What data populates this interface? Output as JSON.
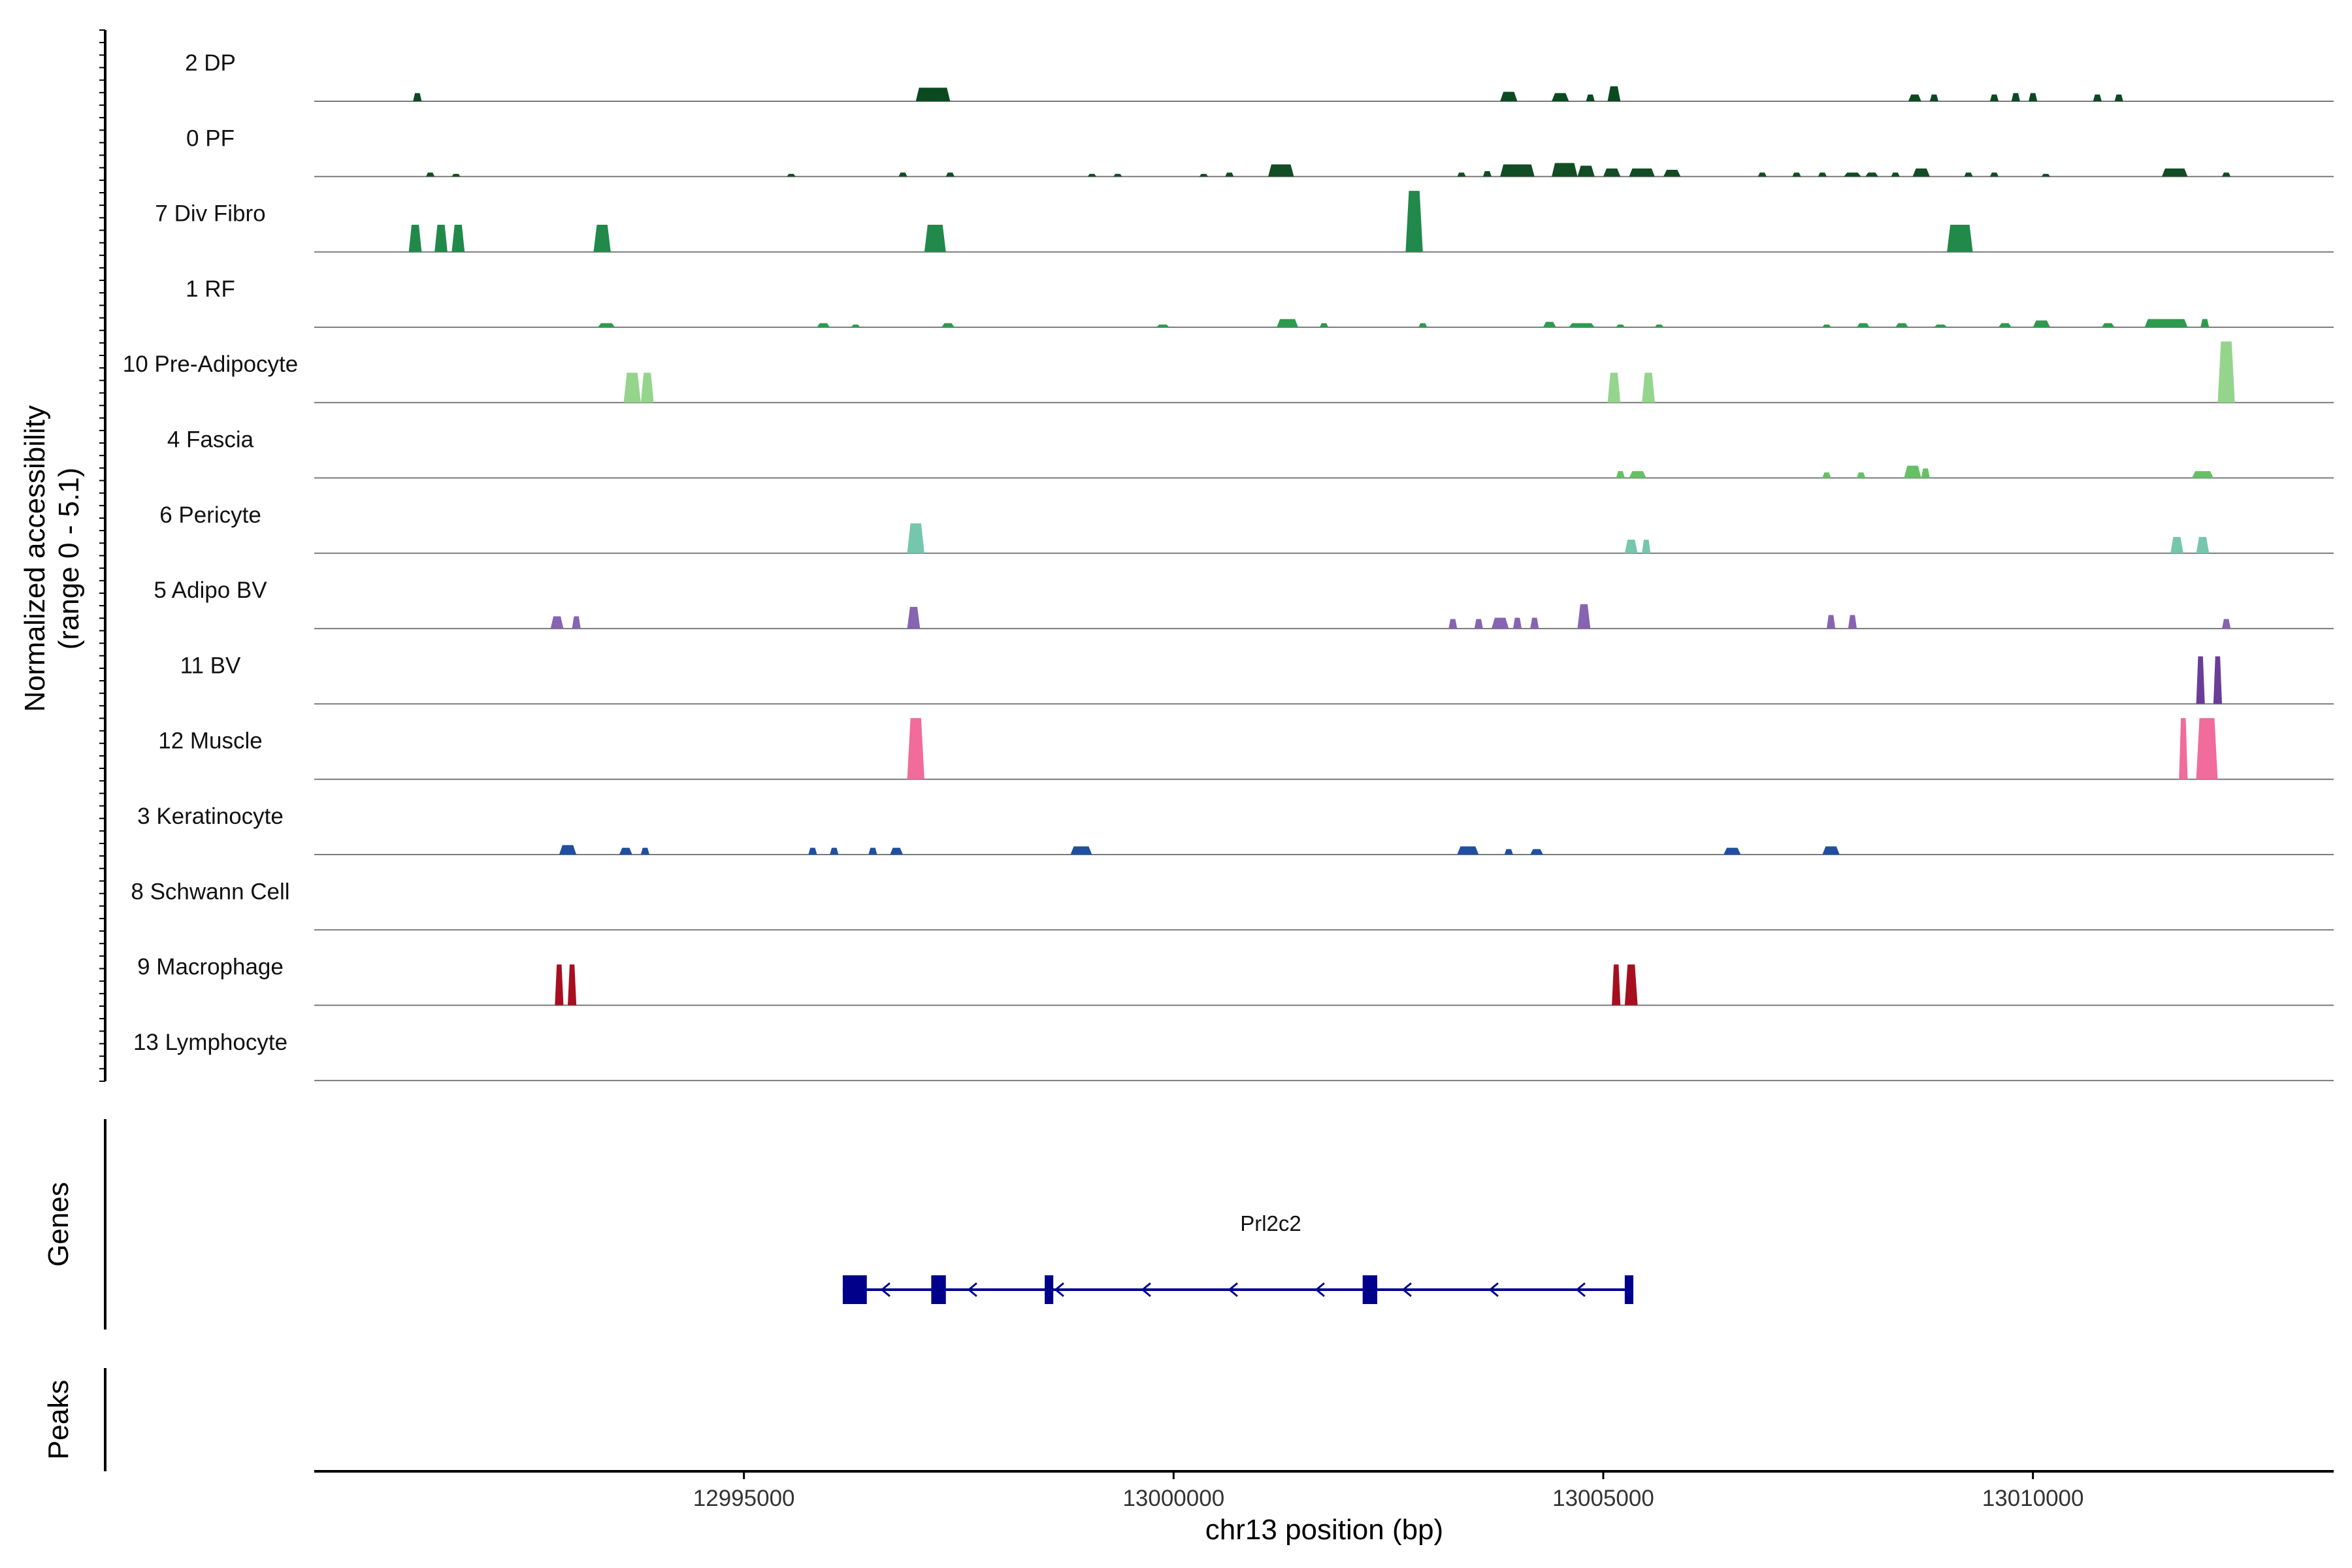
{
  "chart_data": {
    "type": "area",
    "chromosome": "chr13",
    "xlim": [
      12990000,
      13013500
    ],
    "xlabel": "chr13 position (bp)",
    "x_ticks": [
      12995000,
      13000000,
      13005000,
      13010000
    ],
    "x_tick_labels": [
      "12995000",
      "13000000",
      "13005000",
      "13010000"
    ],
    "ylabel_line1": "Normalized accessibility",
    "ylabel_line2": "(range 0 - 5.1)",
    "ylim": [
      0,
      5.1
    ],
    "grid": false,
    "series": [
      {
        "name": "2 DP",
        "color": "#0b4a21",
        "peaks": [
          [
            12991150,
            12991250,
            0.6
          ],
          [
            12997000,
            12997400,
            1.0
          ],
          [
            13003800,
            13004000,
            0.7
          ],
          [
            13004400,
            13004600,
            0.6
          ],
          [
            13004800,
            13004900,
            0.5
          ],
          [
            13005050,
            13005200,
            1.1
          ],
          [
            13008550,
            13008700,
            0.5
          ],
          [
            13008800,
            13008900,
            0.5
          ],
          [
            13009500,
            13009600,
            0.5
          ],
          [
            13009750,
            13009850,
            0.6
          ],
          [
            13009950,
            13010050,
            0.6
          ],
          [
            13010700,
            13010800,
            0.5
          ],
          [
            13010950,
            13011050,
            0.5
          ]
        ]
      },
      {
        "name": "0 PF",
        "color": "#134d25",
        "peaks": [
          [
            12991300,
            12991400,
            0.3
          ],
          [
            12991600,
            12991700,
            0.2
          ],
          [
            12995500,
            12995600,
            0.2
          ],
          [
            12996800,
            12996900,
            0.3
          ],
          [
            12997350,
            12997450,
            0.3
          ],
          [
            12999000,
            12999100,
            0.2
          ],
          [
            12999300,
            12999400,
            0.2
          ],
          [
            13000300,
            13000400,
            0.2
          ],
          [
            13000600,
            13000700,
            0.3
          ],
          [
            13001100,
            13001400,
            0.9
          ],
          [
            13003300,
            13003400,
            0.3
          ],
          [
            13003600,
            13003700,
            0.4
          ],
          [
            13003800,
            13004200,
            0.9
          ],
          [
            13004400,
            13004700,
            1.0
          ],
          [
            13004700,
            13004900,
            0.8
          ],
          [
            13005000,
            13005200,
            0.6
          ],
          [
            13005300,
            13005600,
            0.6
          ],
          [
            13005700,
            13005900,
            0.5
          ],
          [
            13006800,
            13006900,
            0.3
          ],
          [
            13007200,
            13007300,
            0.3
          ],
          [
            13007500,
            13007600,
            0.3
          ],
          [
            13007800,
            13008000,
            0.3
          ],
          [
            13008050,
            13008200,
            0.3
          ],
          [
            13008350,
            13008450,
            0.3
          ],
          [
            13008600,
            13008800,
            0.6
          ],
          [
            13009200,
            13009300,
            0.3
          ],
          [
            13009500,
            13009600,
            0.3
          ],
          [
            13010100,
            13010200,
            0.2
          ],
          [
            13011500,
            13011800,
            0.6
          ],
          [
            13012200,
            13012300,
            0.3
          ]
        ]
      },
      {
        "name": "7 Div Fibro",
        "color": "#21894a",
        "peaks": [
          [
            12991100,
            12991250,
            2.0
          ],
          [
            12991400,
            12991550,
            2.0
          ],
          [
            12991600,
            12991750,
            2.0
          ],
          [
            12993250,
            12993450,
            2.0
          ],
          [
            12997100,
            12997350,
            2.0
          ],
          [
            13002700,
            13002900,
            4.5
          ],
          [
            13009000,
            13009300,
            2.0
          ]
        ]
      },
      {
        "name": "1 RF",
        "color": "#2d9a4e",
        "peaks": [
          [
            12993300,
            12993500,
            0.3
          ],
          [
            12995850,
            12996000,
            0.3
          ],
          [
            12996250,
            12996350,
            0.2
          ],
          [
            12997300,
            12997450,
            0.3
          ],
          [
            12999800,
            12999950,
            0.2
          ],
          [
            13001200,
            13001450,
            0.6
          ],
          [
            13001700,
            13001800,
            0.3
          ],
          [
            13002850,
            13002950,
            0.3
          ],
          [
            13004300,
            13004450,
            0.4
          ],
          [
            13004600,
            13004900,
            0.3
          ],
          [
            13005150,
            13005250,
            0.2
          ],
          [
            13005600,
            13005700,
            0.2
          ],
          [
            13007550,
            13007650,
            0.2
          ],
          [
            13007950,
            13008100,
            0.3
          ],
          [
            13008400,
            13008550,
            0.3
          ],
          [
            13008850,
            13009000,
            0.2
          ],
          [
            13009600,
            13009750,
            0.3
          ],
          [
            13010000,
            13010200,
            0.5
          ],
          [
            13010800,
            13010950,
            0.3
          ],
          [
            13011300,
            13011800,
            0.6
          ],
          [
            13011950,
            13012050,
            0.6
          ]
        ]
      },
      {
        "name": "10 Pre-Adipocyte",
        "color": "#95d48c",
        "peaks": [
          [
            12993600,
            12993800,
            2.2
          ],
          [
            12993800,
            12993950,
            2.2
          ],
          [
            13005050,
            13005200,
            2.2
          ],
          [
            13005450,
            13005600,
            2.2
          ],
          [
            13012150,
            13012350,
            4.5
          ]
        ]
      },
      {
        "name": "4 Fascia",
        "color": "#66c164",
        "peaks": [
          [
            13005150,
            13005250,
            0.5
          ],
          [
            13005300,
            13005500,
            0.5
          ],
          [
            13007550,
            13007650,
            0.4
          ],
          [
            13007950,
            13008050,
            0.4
          ],
          [
            13008500,
            13008700,
            0.9
          ],
          [
            13008700,
            13008800,
            0.7
          ],
          [
            13011850,
            13012100,
            0.5
          ]
        ]
      },
      {
        "name": "6 Pericyte",
        "color": "#75c6ac",
        "peaks": [
          [
            12996900,
            12997100,
            2.2
          ],
          [
            13005250,
            13005400,
            1.0
          ],
          [
            13005450,
            13005550,
            1.0
          ],
          [
            13011600,
            13011750,
            1.2
          ],
          [
            13011900,
            13012050,
            1.2
          ]
        ]
      },
      {
        "name": "5 Adipo BV",
        "color": "#8664b1",
        "peaks": [
          [
            12992750,
            12992900,
            0.9
          ],
          [
            12993000,
            12993100,
            0.9
          ],
          [
            12996900,
            12997050,
            1.6
          ],
          [
            13003200,
            13003300,
            0.7
          ],
          [
            13003500,
            13003600,
            0.7
          ],
          [
            13003700,
            13003900,
            0.8
          ],
          [
            13003950,
            13004050,
            0.8
          ],
          [
            13004150,
            13004250,
            0.8
          ],
          [
            13004700,
            13004850,
            1.8
          ],
          [
            13007600,
            13007700,
            1.0
          ],
          [
            13007850,
            13007950,
            1.0
          ],
          [
            13012200,
            13012300,
            0.7
          ]
        ]
      },
      {
        "name": "11 BV",
        "color": "#6a3d98",
        "peaks": [
          [
            13011900,
            13012000,
            3.5
          ],
          [
            13012100,
            13012200,
            3.5
          ]
        ]
      },
      {
        "name": "12 Muscle",
        "color": "#f16b9b",
        "peaks": [
          [
            12996900,
            12997100,
            4.5
          ],
          [
            13011700,
            13011800,
            4.5
          ],
          [
            13011900,
            13012150,
            4.5
          ]
        ]
      },
      {
        "name": "3 Keratinocyte",
        "color": "#1f4f9e",
        "peaks": [
          [
            12992850,
            12993050,
            0.7
          ],
          [
            12993550,
            12993700,
            0.5
          ],
          [
            12993800,
            12993900,
            0.5
          ],
          [
            12995750,
            12995850,
            0.5
          ],
          [
            12996000,
            12996100,
            0.5
          ],
          [
            12996450,
            12996550,
            0.5
          ],
          [
            12996700,
            12996850,
            0.5
          ],
          [
            12998800,
            12999050,
            0.6
          ],
          [
            13003300,
            13003550,
            0.6
          ],
          [
            13003850,
            13003950,
            0.4
          ],
          [
            13004150,
            13004300,
            0.4
          ],
          [
            13006400,
            13006600,
            0.5
          ],
          [
            13007550,
            13007750,
            0.6
          ]
        ]
      },
      {
        "name": "8 Schwann Cell",
        "color": "#3c3c3c",
        "peaks": []
      },
      {
        "name": "9 Macrophage",
        "color": "#a70f21",
        "peaks": [
          [
            12992800,
            12992900,
            3.0
          ],
          [
            12992950,
            12993050,
            3.0
          ],
          [
            13005100,
            13005200,
            3.0
          ],
          [
            13005250,
            13005400,
            3.0
          ]
        ]
      },
      {
        "name": "13 Lymphocyte",
        "color": "#3c3c3c",
        "peaks": []
      }
    ],
    "genes_title": "Genes",
    "genes": [
      {
        "name": "Prl2c2",
        "strand": "-",
        "start": 12996150,
        "end": 13005350,
        "exons": [
          [
            12996150,
            12996430
          ],
          [
            12997180,
            12997350
          ],
          [
            12998500,
            12998600
          ],
          [
            13002200,
            13002370
          ],
          [
            13005250,
            13005350
          ]
        ],
        "color": "#00008b"
      }
    ],
    "peaks_title": "Peaks",
    "peak_regions": []
  }
}
